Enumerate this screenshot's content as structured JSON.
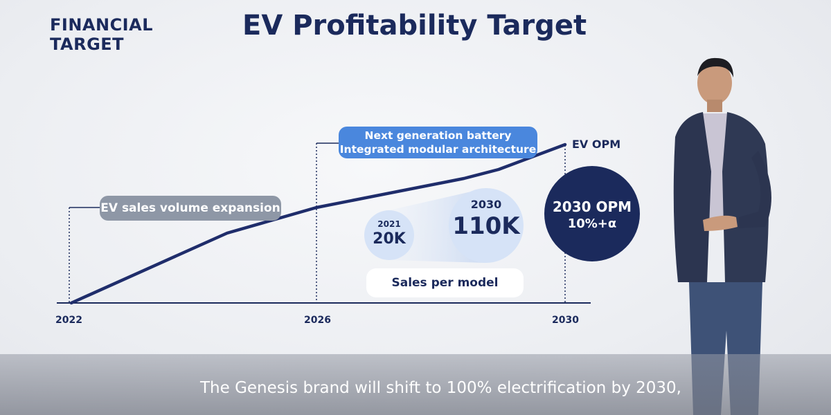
{
  "section_label": {
    "line1": "FINANCIAL",
    "line2": "TARGET"
  },
  "title": "EV Profitability Target",
  "chart": {
    "series_label": "EV OPM",
    "x_ticks": [
      "2022",
      "2026",
      "2030"
    ],
    "phase_labels": {
      "phase1": "EV sales volume expansion",
      "phase2_line1": "Next generation battery",
      "phase2_line2": "Integrated modular architecture"
    },
    "sales_per_model": {
      "label": "Sales per model",
      "from": {
        "year": "2021",
        "value": "20K"
      },
      "to": {
        "year": "2030",
        "value": "110K"
      }
    },
    "opm_target": {
      "line1": "2030 OPM",
      "line2": "10%+α"
    }
  },
  "subtitle": "The Genesis brand will shift to 100% electrification by 2030,",
  "colors": {
    "navy": "#1b2a5c",
    "accent_blue": "#4a87dd",
    "grey_pill": "#8e97a6",
    "light_blue": "#d6e3f7"
  }
}
